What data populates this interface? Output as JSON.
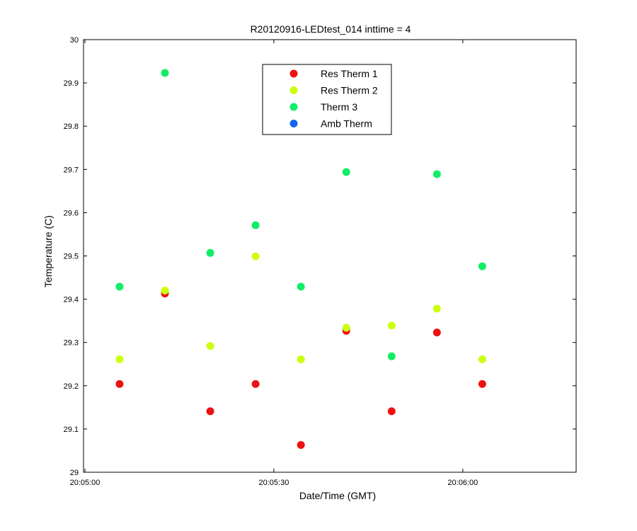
{
  "chart_data": {
    "type": "scatter",
    "title": "R20120916-LEDtest_014 inttime = 4",
    "xlabel": "Date/Time (GMT)",
    "ylabel": "Temperature (C)",
    "x_unit": "time (seconds after 20:05:00 GMT)",
    "xlim": [
      0,
      78
    ],
    "ylim": [
      29,
      30
    ],
    "xticks": [
      {
        "value": 0,
        "label": "20:05:00"
      },
      {
        "value": 30,
        "label": "20:05:30"
      },
      {
        "value": 60,
        "label": "20:06:00"
      }
    ],
    "yticks": [
      {
        "value": 29,
        "label": "29"
      },
      {
        "value": 29.1,
        "label": "29.1"
      },
      {
        "value": 29.2,
        "label": "29.2"
      },
      {
        "value": 29.3,
        "label": "29.3"
      },
      {
        "value": 29.4,
        "label": "29.4"
      },
      {
        "value": 29.5,
        "label": "29.5"
      },
      {
        "value": 29.6,
        "label": "29.6"
      },
      {
        "value": 29.7,
        "label": "29.7"
      },
      {
        "value": 29.8,
        "label": "29.8"
      },
      {
        "value": 29.9,
        "label": "29.9"
      },
      {
        "value": 30,
        "label": "30"
      }
    ],
    "grid": false,
    "legend_position": "top-center",
    "x": [
      5.5,
      12.7,
      19.9,
      27.1,
      34.3,
      41.5,
      48.7,
      55.9,
      63.1
    ],
    "series": [
      {
        "name": "Res Therm 1",
        "color": "#ee1111",
        "values": [
          29.204,
          29.413,
          29.141,
          29.204,
          29.063,
          29.327,
          29.141,
          29.323,
          29.204
        ]
      },
      {
        "name": "Res Therm 2",
        "color": "#ccff11",
        "values": [
          29.261,
          29.42,
          29.292,
          29.499,
          29.261,
          29.334,
          29.339,
          29.378,
          29.261
        ]
      },
      {
        "name": "Therm 3",
        "color": "#11ee66",
        "values": [
          29.429,
          29.923,
          29.507,
          29.571,
          29.429,
          29.694,
          29.268,
          29.689,
          29.476
        ]
      },
      {
        "name": "Amb Therm",
        "color": "#1166ee",
        "values": []
      }
    ]
  }
}
